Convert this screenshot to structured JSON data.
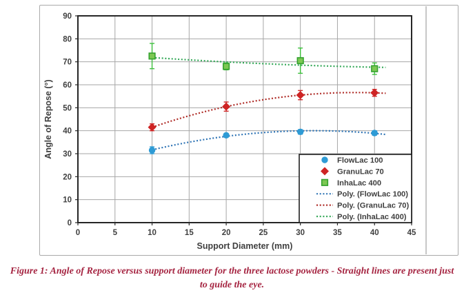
{
  "figure": {
    "caption": "Figure 1: Angle of Repose versus support diameter for the three lactose powders - Straight lines are present just to guide the eye."
  },
  "chart_data": {
    "type": "scatter",
    "title": "",
    "xlabel": "Support Diameter (mm)",
    "ylabel": "Angle of Repose (°)",
    "xlim": [
      0,
      45
    ],
    "ylim": [
      0,
      90
    ],
    "xticks": [
      0,
      5,
      10,
      15,
      20,
      25,
      30,
      35,
      40,
      45
    ],
    "yticks": [
      0,
      10,
      20,
      30,
      40,
      50,
      60,
      70,
      80,
      90
    ],
    "grid": true,
    "legend_position": "inside-lower-right",
    "x": [
      10,
      20,
      30,
      40
    ],
    "series": [
      {
        "name": "FlowLac 100",
        "marker": "circle",
        "color": "#2e9bd5",
        "fill": "#2e9bd5",
        "values": [
          31.5,
          38,
          39.5,
          39
        ],
        "errors": [
          1.5,
          0.8,
          1,
          1
        ]
      },
      {
        "name": "GranuLac 70",
        "marker": "diamond",
        "color": "#ce2424",
        "fill": "#ce2424",
        "values": [
          41.5,
          50.5,
          55.5,
          56.5
        ],
        "errors": [
          1.5,
          2,
          2,
          1.5
        ]
      },
      {
        "name": "InhaLac 400",
        "marker": "square",
        "color": "#33a12e",
        "fill": "#7cc853",
        "errbar_color": "#3dc03d",
        "values": [
          72.5,
          68,
          70.5,
          67
        ],
        "errors": [
          5.5,
          1.5,
          5.5,
          2.5
        ]
      }
    ],
    "trendlines": [
      {
        "name": "Poly. (FlowLac 100)",
        "series": 0,
        "fit": "poly2",
        "color": "#2e74b5"
      },
      {
        "name": "Poly. (GranuLac 70)",
        "series": 1,
        "fit": "poly2",
        "color": "#ae2a25"
      },
      {
        "name": "Poly. (InhaLac 400)",
        "series": 2,
        "fit": "poly2",
        "color": "#33a857"
      }
    ],
    "trend_x_range": [
      10,
      41.5
    ]
  },
  "style_colors": {
    "gridline": "#a6a6a6",
    "plot_border": "#262626",
    "axis_text": "#3f3f3f",
    "legend_border": "#1f1f1f",
    "frame_border": "#a9a9a9",
    "frame_divider": "#8f8f8f",
    "caption": "#a52441"
  }
}
